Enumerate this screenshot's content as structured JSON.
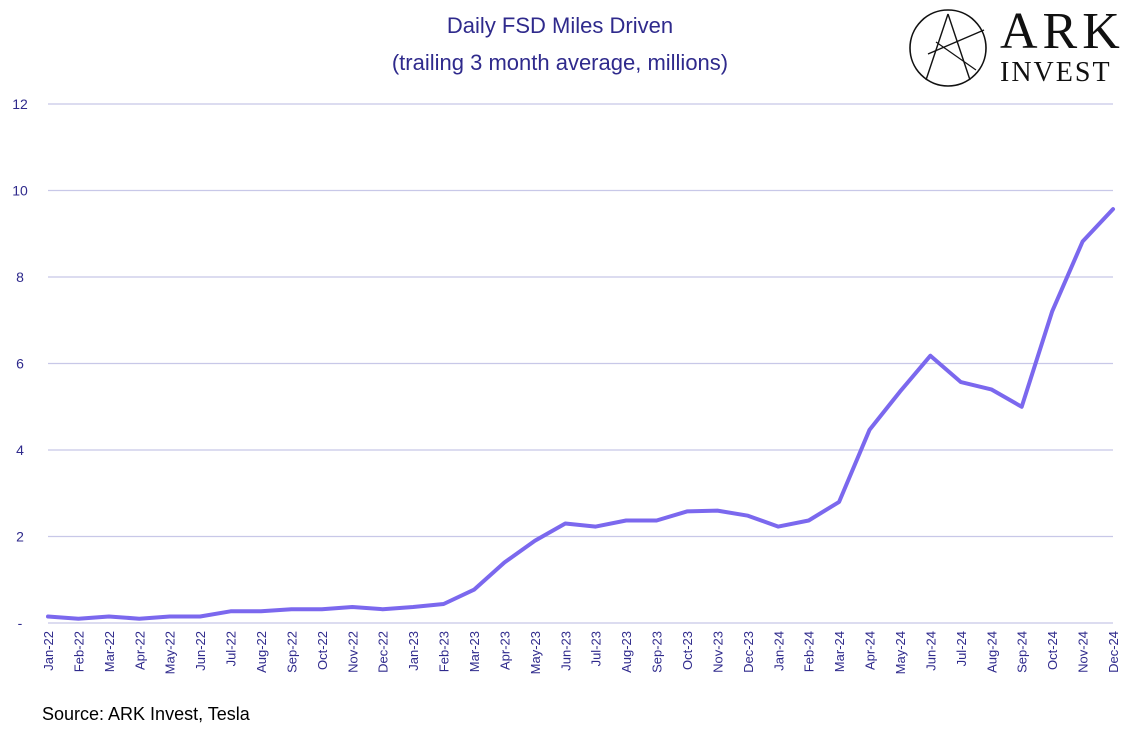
{
  "title_line1": "Daily FSD Miles Driven",
  "title_line2": "(trailing 3 month average, millions)",
  "source": "Source: ARK Invest, Tesla",
  "logo": {
    "line1": "ARK",
    "line2": "INVEST"
  },
  "colors": {
    "line": "#7b68ee",
    "grid": "#c8c8e8",
    "text": "#2f2a8c"
  },
  "chart_data": {
    "type": "line",
    "title": "Daily FSD Miles Driven (trailing 3 month average, millions)",
    "xlabel": "",
    "ylabel": "",
    "ylim": [
      0,
      12
    ],
    "yticks": [
      0,
      2,
      4,
      6,
      8,
      10,
      12
    ],
    "ytick_labels": [
      "-",
      "2",
      "4",
      "6",
      "8",
      "10",
      "12"
    ],
    "grid": true,
    "categories": [
      "Jan-22",
      "Feb-22",
      "Mar-22",
      "Apr-22",
      "May-22",
      "Jun-22",
      "Jul-22",
      "Aug-22",
      "Sep-22",
      "Oct-22",
      "Nov-22",
      "Dec-22",
      "Jan-23",
      "Feb-23",
      "Mar-23",
      "Apr-23",
      "May-23",
      "Jun-23",
      "Jul-23",
      "Aug-23",
      "Sep-23",
      "Oct-23",
      "Nov-23",
      "Dec-23",
      "Jan-24",
      "Feb-24",
      "Mar-24",
      "Apr-24",
      "May-24",
      "Jun-24",
      "Jul-24",
      "Aug-24",
      "Sep-24",
      "Oct-24",
      "Nov-24",
      "Dec-24"
    ],
    "series": [
      {
        "values": [
          0.15,
          0.1,
          0.15,
          0.1,
          0.15,
          0.15,
          0.27,
          0.27,
          0.32,
          0.32,
          0.37,
          0.32,
          0.37,
          0.44,
          0.77,
          1.4,
          1.9,
          2.3,
          2.23,
          2.37,
          2.37,
          2.58,
          2.6,
          2.48,
          2.23,
          2.37,
          2.8,
          4.47,
          5.35,
          6.18,
          5.57,
          5.4,
          5.0,
          7.2,
          8.82,
          9.57
        ]
      }
    ]
  }
}
